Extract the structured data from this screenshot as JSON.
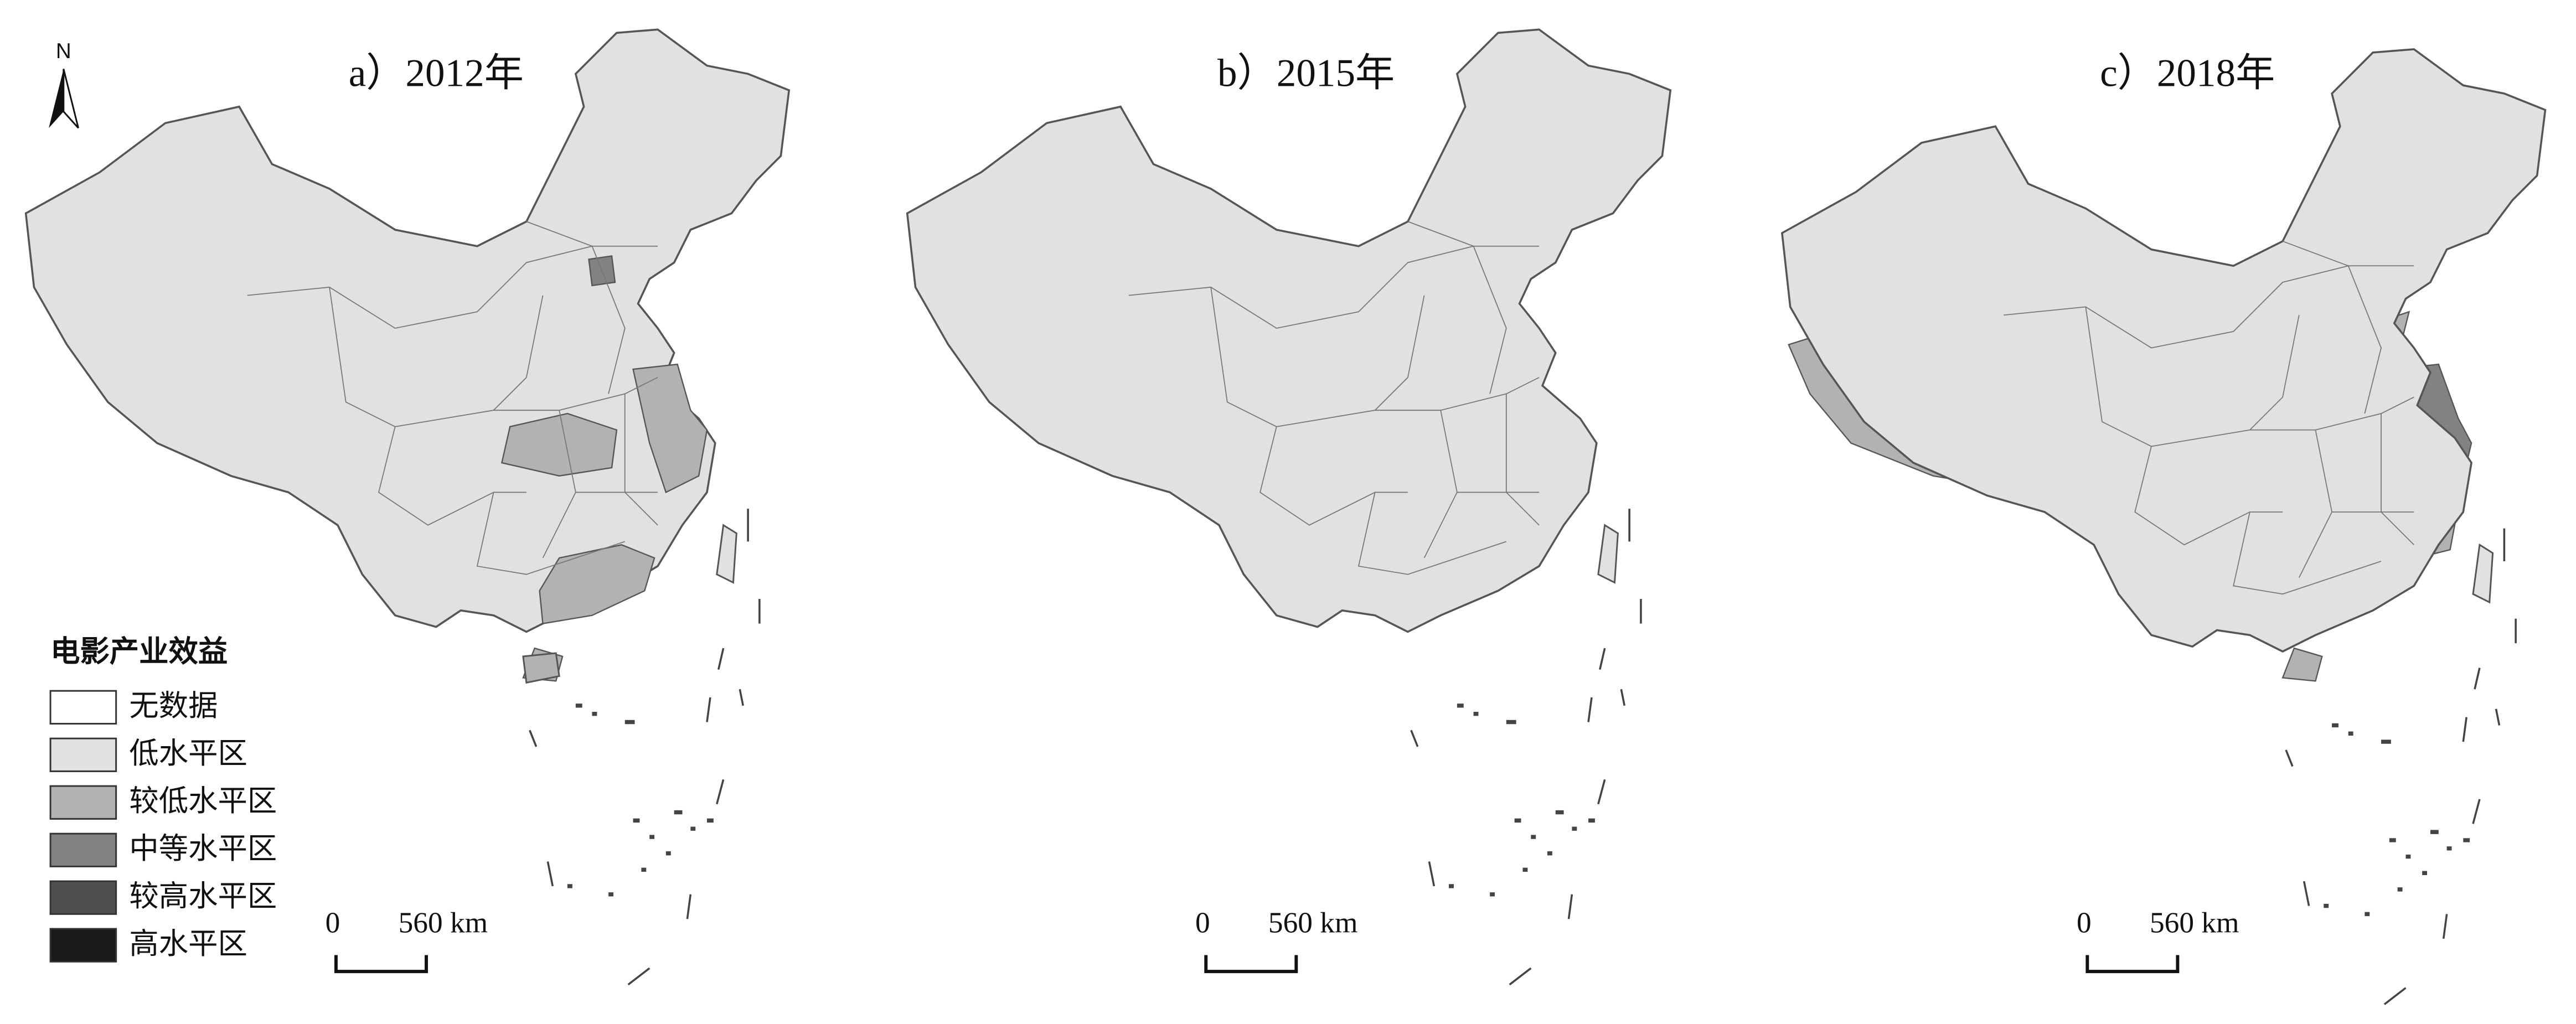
{
  "north": "N",
  "panels": [
    {
      "title": "a）2012年"
    },
    {
      "title": "b）2015年"
    },
    {
      "title": "c）2018年"
    }
  ],
  "legend": {
    "title": "电影产业效益",
    "items": [
      {
        "label": "无数据",
        "color": "#ffffff"
      },
      {
        "label": "低水平区",
        "color": "#e1e1e1"
      },
      {
        "label": "较低水平区",
        "color": "#b2b2b2"
      },
      {
        "label": "中等水平区",
        "color": "#828282"
      },
      {
        "label": "较高水平区",
        "color": "#4e4e4e"
      },
      {
        "label": "高水平区",
        "color": "#1a1a1a"
      }
    ]
  },
  "scale_bar": {
    "labels": [
      "0",
      "560 km"
    ]
  }
}
